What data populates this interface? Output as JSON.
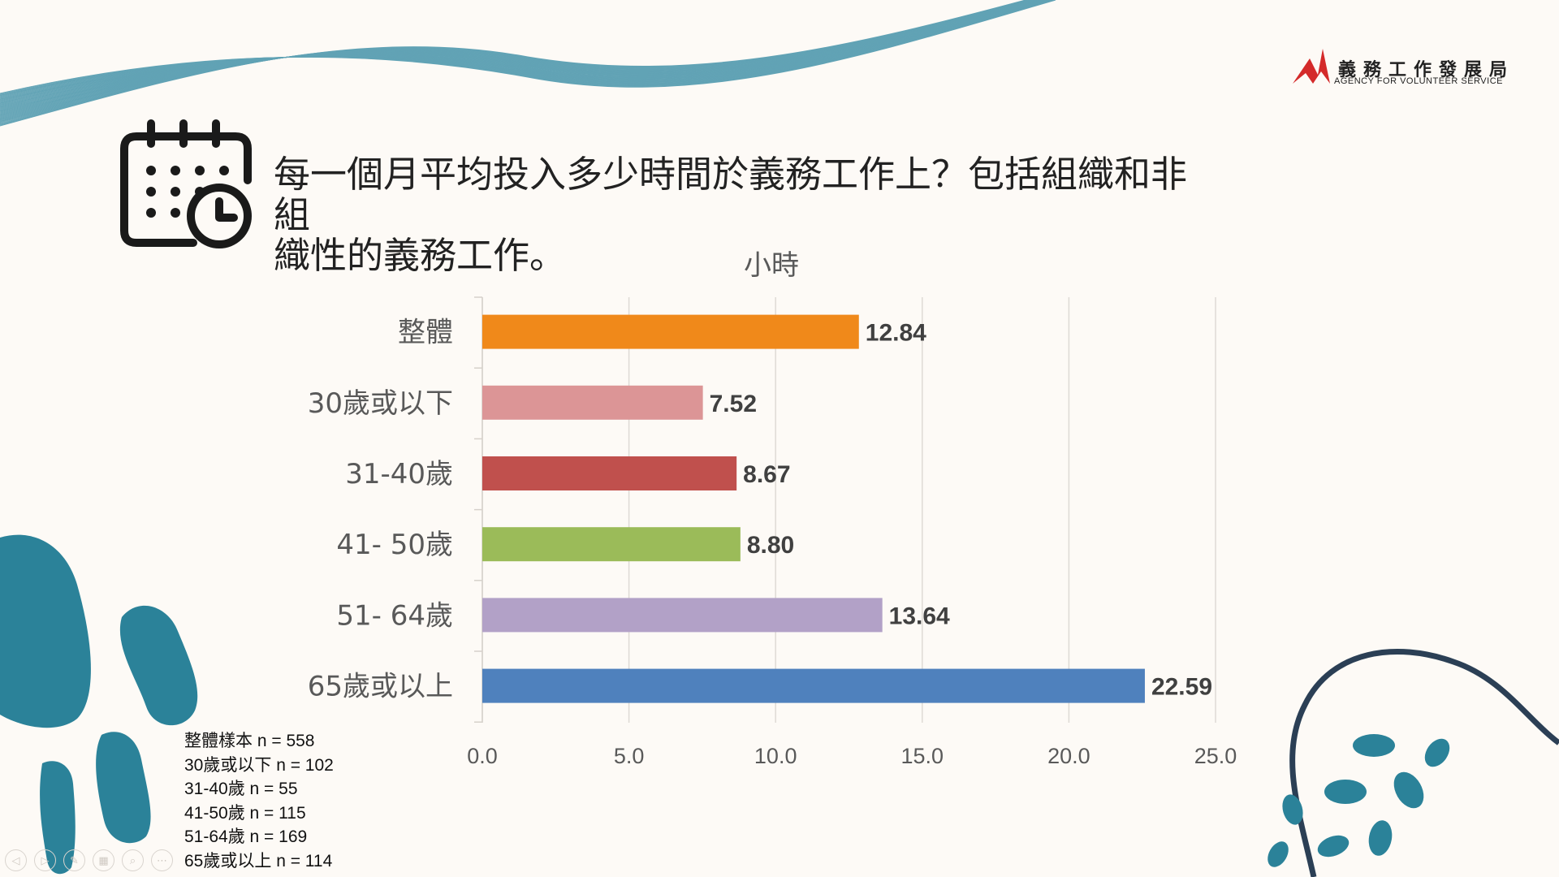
{
  "logo": {
    "name_zh": "義務工作發展局",
    "name_en": "AGENCY FOR VOLUNTEER SERVICE"
  },
  "question": {
    "line1": "每一個月平均投入多少時間於義務工作上？包括組織和非組",
    "line2": "織性的義務工作。"
  },
  "icons": {
    "calendar": "calendar-clock-icon"
  },
  "chart_data": {
    "type": "bar",
    "orientation": "horizontal",
    "title": "小時",
    "categories": [
      "整體",
      "30歲或以下",
      "31-40歲",
      "41- 50歲",
      "51- 64歲",
      "65歲或以上"
    ],
    "values": [
      12.84,
      7.52,
      8.67,
      8.8,
      13.64,
      22.59
    ],
    "value_labels": [
      "12.84",
      "7.52",
      "8.67",
      "8.80",
      "13.64",
      "22.59"
    ],
    "colors": [
      "#f0891a",
      "#dc9596",
      "#c0504d",
      "#9bbb59",
      "#b2a1c7",
      "#4f81bd"
    ],
    "xlim": [
      0,
      25
    ],
    "xticks": [
      "0.0",
      "5.0",
      "10.0",
      "15.0",
      "20.0",
      "25.0"
    ],
    "grid": "vertical",
    "legend": "none"
  },
  "sample_notes": [
    "整體樣本 n = 558",
    "30歲或以下 n = 102",
    "31-40歲 n = 55",
    "41-50歲 n = 115",
    "51-64歲 n = 169",
    "65歲或以上 n = 114"
  ],
  "toolbar": [
    "prev-icon",
    "next-icon",
    "pen-icon",
    "slides-icon",
    "zoom-icon",
    "more-icon"
  ]
}
